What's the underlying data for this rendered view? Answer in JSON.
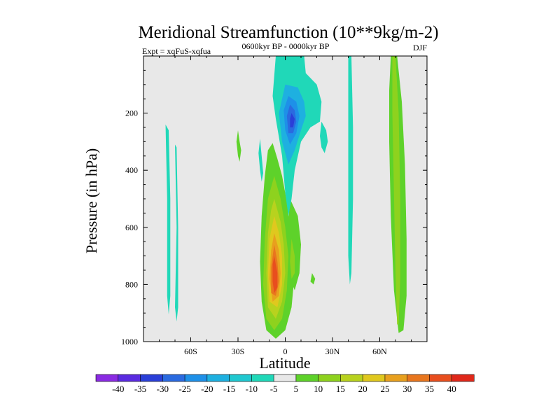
{
  "chart_data": {
    "type": "contour",
    "title": "Meridional Streamfunction (10**9kg/m-2)",
    "subtitle_left": "Expt = xqFuS-xqfua",
    "subtitle_center": "0600kyr BP - 0000kyr BP",
    "subtitle_right": "DJF",
    "xlabel": "Latitude",
    "ylabel": "Pressure (in hPa)",
    "xlim": [
      -90,
      90
    ],
    "ylim": [
      1000,
      0
    ],
    "x_ticks": [
      {
        "value": -60,
        "label": "60S"
      },
      {
        "value": -30,
        "label": "30S"
      },
      {
        "value": 0,
        "label": "0"
      },
      {
        "value": 30,
        "label": "30N"
      },
      {
        "value": 60,
        "label": "60N"
      }
    ],
    "y_ticks": [
      {
        "value": 200,
        "label": "200"
      },
      {
        "value": 400,
        "label": "400"
      },
      {
        "value": 600,
        "label": "600"
      },
      {
        "value": 800,
        "label": "800"
      },
      {
        "value": 1000,
        "label": "1000"
      }
    ],
    "background_color": "#e8e8e8",
    "colorbar": {
      "labels": [
        "-40",
        "-35",
        "-30",
        "-25",
        "-20",
        "-15",
        "-10",
        "-5",
        "5",
        "10",
        "15",
        "20",
        "25",
        "30",
        "35",
        "40"
      ],
      "colors": [
        "#8a2be2",
        "#5a2be0",
        "#2a3fd8",
        "#2a6ae0",
        "#1e90e8",
        "#1eb0e0",
        "#20c8d0",
        "#20d8b8",
        "#e8e8e8",
        "#5ed22a",
        "#8ed21e",
        "#b8d21e",
        "#e0c81e",
        "#e8a01e",
        "#e8761e",
        "#e84e1e",
        "#e0281a"
      ]
    },
    "features": [
      {
        "name": "southern-cell-a",
        "color": "#20d8b8",
        "points": [
          [
            -76,
            240
          ],
          [
            -75,
            500
          ],
          [
            -75,
            840
          ],
          [
            -74,
            905
          ],
          [
            -73,
            840
          ],
          [
            -73,
            500
          ],
          [
            -74,
            260
          ]
        ]
      },
      {
        "name": "southern-cell-b",
        "color": "#20d8b8",
        "points": [
          [
            -70,
            310
          ],
          [
            -69,
            600
          ],
          [
            -70,
            880
          ],
          [
            -69,
            930
          ],
          [
            -68,
            880
          ],
          [
            -68,
            600
          ],
          [
            -69,
            320
          ]
        ]
      },
      {
        "name": "sh-positive-small",
        "color": "#5ed22a",
        "points": [
          [
            -30,
            260
          ],
          [
            -29,
            300
          ],
          [
            -28,
            330
          ],
          [
            -29,
            370
          ],
          [
            -30,
            350
          ],
          [
            -31,
            300
          ]
        ]
      },
      {
        "name": "sh-negative-small",
        "color": "#20d8b8",
        "points": [
          [
            -16,
            290
          ],
          [
            -15,
            350
          ],
          [
            -14,
            410
          ],
          [
            -15,
            440
          ],
          [
            -16,
            400
          ],
          [
            -17,
            340
          ]
        ]
      },
      {
        "name": "hadley-outer",
        "color": "#5ed22a",
        "points": [
          [
            -8,
            305
          ],
          [
            -5,
            360
          ],
          [
            -2,
            420
          ],
          [
            1,
            510
          ],
          [
            4,
            640
          ],
          [
            6,
            760
          ],
          [
            4,
            880
          ],
          [
            0,
            960
          ],
          [
            -6,
            990
          ],
          [
            -12,
            960
          ],
          [
            -15,
            860
          ],
          [
            -16,
            720
          ],
          [
            -15,
            560
          ],
          [
            -13,
            420
          ],
          [
            -11,
            330
          ]
        ]
      },
      {
        "name": "hadley-10",
        "color": "#8ed21e",
        "points": [
          [
            -7,
            420
          ],
          [
            -3,
            500
          ],
          [
            0,
            600
          ],
          [
            2,
            700
          ],
          [
            1,
            820
          ],
          [
            -2,
            920
          ],
          [
            -7,
            960
          ],
          [
            -12,
            920
          ],
          [
            -14,
            800
          ],
          [
            -13,
            640
          ],
          [
            -11,
            500
          ]
        ]
      },
      {
        "name": "hadley-15",
        "color": "#b8d21e",
        "points": [
          [
            -7,
            500
          ],
          [
            -3,
            580
          ],
          [
            -1,
            660
          ],
          [
            0,
            760
          ],
          [
            -2,
            860
          ],
          [
            -6,
            920
          ],
          [
            -11,
            880
          ],
          [
            -12,
            760
          ],
          [
            -11,
            620
          ],
          [
            -9,
            540
          ]
        ]
      },
      {
        "name": "hadley-20",
        "color": "#e0c81e",
        "points": [
          [
            -7,
            560
          ],
          [
            -4,
            620
          ],
          [
            -2,
            700
          ],
          [
            -2,
            800
          ],
          [
            -5,
            880
          ],
          [
            -10,
            860
          ],
          [
            -11,
            760
          ],
          [
            -10,
            640
          ]
        ]
      },
      {
        "name": "hadley-25",
        "color": "#e8a01e",
        "points": [
          [
            -7,
            620
          ],
          [
            -4,
            680
          ],
          [
            -3,
            760
          ],
          [
            -4,
            840
          ],
          [
            -8,
            860
          ],
          [
            -10,
            780
          ],
          [
            -9,
            680
          ]
        ]
      },
      {
        "name": "hadley-30",
        "color": "#e8761e",
        "points": [
          [
            -7,
            660
          ],
          [
            -5,
            720
          ],
          [
            -4,
            790
          ],
          [
            -6,
            840
          ],
          [
            -9,
            830
          ],
          [
            -9,
            740
          ]
        ]
      },
      {
        "name": "hadley-35",
        "color": "#e84e1e",
        "points": [
          [
            -7,
            700
          ],
          [
            -5,
            760
          ],
          [
            -5,
            810
          ],
          [
            -7,
            830
          ],
          [
            -8,
            790
          ],
          [
            -8,
            730
          ]
        ]
      },
      {
        "name": "equatorial-pos-upper",
        "color": "#5ed22a",
        "points": [
          [
            3,
            500
          ],
          [
            8,
            560
          ],
          [
            10,
            660
          ],
          [
            9,
            760
          ],
          [
            6,
            820
          ],
          [
            3,
            780
          ],
          [
            2,
            680
          ],
          [
            2,
            580
          ]
        ]
      },
      {
        "name": "eq-pos-small-a",
        "color": "#8ed21e",
        "points": [
          [
            4,
            640
          ],
          [
            6,
            700
          ],
          [
            6,
            760
          ],
          [
            4,
            780
          ],
          [
            3,
            720
          ]
        ]
      },
      {
        "name": "eq-pos-blob-b",
        "color": "#5ed22a",
        "points": [
          [
            17,
            760
          ],
          [
            19,
            780
          ],
          [
            18,
            800
          ],
          [
            16,
            790
          ]
        ]
      },
      {
        "name": "upper-neg-outer",
        "color": "#20d8b8",
        "points": [
          [
            -6,
            0
          ],
          [
            12,
            0
          ],
          [
            13,
            60
          ],
          [
            20,
            100
          ],
          [
            23,
            160
          ],
          [
            22,
            230
          ],
          [
            16,
            250
          ],
          [
            10,
            300
          ],
          [
            6,
            400
          ],
          [
            4,
            500
          ],
          [
            2,
            560
          ],
          [
            0,
            480
          ],
          [
            -2,
            350
          ],
          [
            -6,
            220
          ],
          [
            -8,
            140
          ]
        ]
      },
      {
        "name": "upper-neg-10",
        "color": "#1eb0e0",
        "points": [
          [
            0,
            100
          ],
          [
            8,
            110
          ],
          [
            12,
            160
          ],
          [
            13,
            210
          ],
          [
            10,
            260
          ],
          [
            6,
            330
          ],
          [
            2,
            380
          ],
          [
            -2,
            300
          ],
          [
            -4,
            200
          ]
        ]
      },
      {
        "name": "upper-neg-15",
        "color": "#1e90e8",
        "points": [
          [
            2,
            140
          ],
          [
            7,
            160
          ],
          [
            9,
            210
          ],
          [
            7,
            270
          ],
          [
            3,
            310
          ],
          [
            0,
            260
          ],
          [
            -1,
            190
          ]
        ]
      },
      {
        "name": "upper-neg-20",
        "color": "#2a6ae0",
        "points": [
          [
            3,
            170
          ],
          [
            6,
            190
          ],
          [
            7,
            230
          ],
          [
            5,
            270
          ],
          [
            2,
            270
          ],
          [
            1,
            210
          ]
        ]
      },
      {
        "name": "upper-neg-25",
        "color": "#2a3fd8",
        "points": [
          [
            4,
            200
          ],
          [
            6,
            220
          ],
          [
            5,
            250
          ],
          [
            3,
            250
          ],
          [
            3,
            220
          ]
        ]
      },
      {
        "name": "nh-neg-column",
        "color": "#20d8b8",
        "points": [
          [
            23,
            230
          ],
          [
            26,
            260
          ],
          [
            27,
            300
          ],
          [
            25,
            340
          ],
          [
            23,
            320
          ],
          [
            22,
            280
          ]
        ]
      },
      {
        "name": "nh-neg-column-b",
        "color": "#20d8b8",
        "points": [
          [
            40,
            0
          ],
          [
            42,
            0
          ],
          [
            43,
            250
          ],
          [
            43,
            500
          ],
          [
            42,
            760
          ],
          [
            41,
            800
          ],
          [
            40,
            700
          ],
          [
            40,
            400
          ],
          [
            40,
            150
          ]
        ]
      },
      {
        "name": "nh-pos-column-outer",
        "color": "#5ed22a",
        "points": [
          [
            67,
            0
          ],
          [
            71,
            0
          ],
          [
            74,
            160
          ],
          [
            76,
            380
          ],
          [
            77,
            640
          ],
          [
            77,
            840
          ],
          [
            75,
            960
          ],
          [
            72,
            970
          ],
          [
            69,
            820
          ],
          [
            67,
            560
          ],
          [
            66,
            300
          ],
          [
            66,
            120
          ]
        ]
      },
      {
        "name": "nh-pos-column-inner",
        "color": "#8ed21e",
        "points": [
          [
            68,
            0
          ],
          [
            70,
            0
          ],
          [
            72,
            200
          ],
          [
            73,
            500
          ],
          [
            73,
            780
          ],
          [
            72,
            940
          ],
          [
            71,
            940
          ],
          [
            70,
            760
          ],
          [
            69,
            480
          ],
          [
            68,
            200
          ]
        ]
      }
    ]
  }
}
